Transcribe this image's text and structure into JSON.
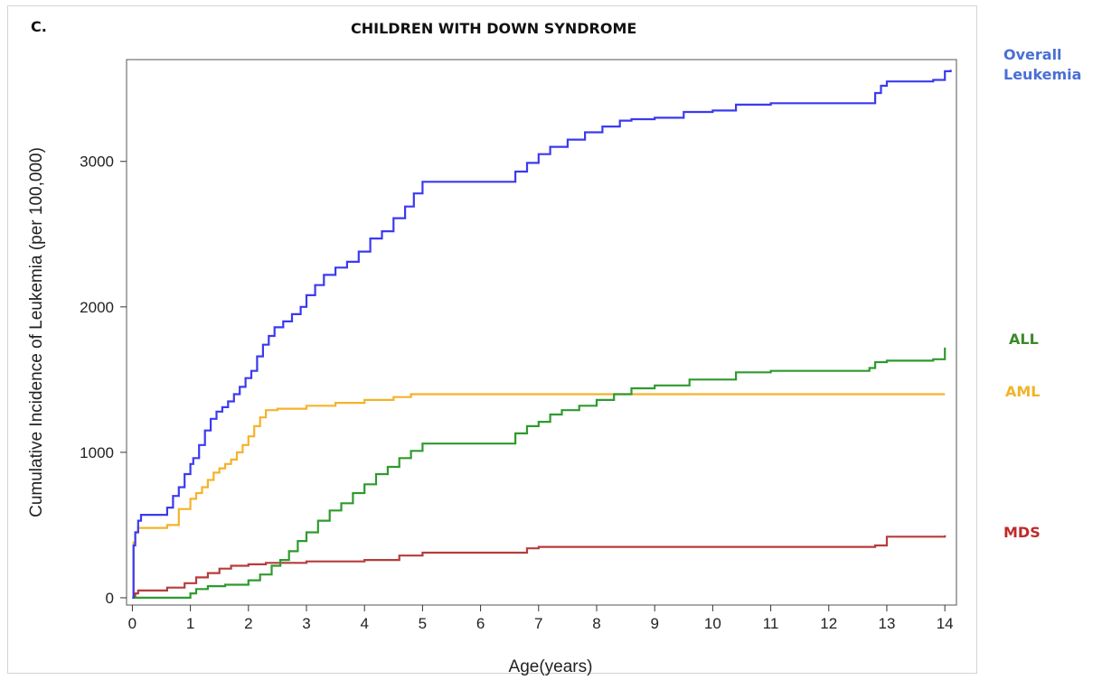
{
  "panel_label": "C.",
  "chart_data": {
    "type": "line",
    "title": "CHILDREN WITH DOWN SYNDROME",
    "xlabel": "Age(years)",
    "ylabel": "Cumulative Incidence of Leukemia (per 100,000)",
    "xlim": [
      -0.1,
      14.2
    ],
    "ylim": [
      -50,
      3700
    ],
    "x_ticks": [
      0,
      1,
      2,
      3,
      4,
      5,
      6,
      7,
      8,
      9,
      10,
      11,
      12,
      13,
      14
    ],
    "y_ticks": [
      0,
      1000,
      2000,
      3000
    ],
    "y_tick_labels": [
      "0",
      "1000",
      "2000",
      "3000"
    ],
    "grid": false,
    "legend": "right, labels next to series",
    "series": [
      {
        "name": "Overall Leukemia",
        "color": "#3a3af0",
        "label_color": "#4a6fd4",
        "step": true,
        "x": [
          0,
          0.02,
          0.05,
          0.1,
          0.15,
          0.6,
          0.7,
          0.8,
          0.9,
          1.0,
          1.05,
          1.15,
          1.25,
          1.35,
          1.45,
          1.55,
          1.65,
          1.75,
          1.85,
          1.95,
          2.05,
          2.15,
          2.25,
          2.35,
          2.45,
          2.6,
          2.75,
          2.9,
          3.0,
          3.15,
          3.3,
          3.5,
          3.7,
          3.9,
          4.1,
          4.3,
          4.5,
          4.7,
          4.85,
          5.0,
          6.6,
          6.8,
          7.0,
          7.2,
          7.5,
          7.8,
          8.1,
          8.4,
          8.6,
          9.0,
          9.5,
          10.0,
          10.4,
          11.0,
          12.8,
          12.9,
          13.0,
          13.8,
          14.0,
          14.1
        ],
        "values": [
          0,
          360,
          450,
          530,
          570,
          620,
          700,
          760,
          850,
          920,
          960,
          1050,
          1150,
          1230,
          1280,
          1310,
          1350,
          1400,
          1450,
          1510,
          1560,
          1660,
          1740,
          1800,
          1860,
          1900,
          1950,
          2000,
          2080,
          2150,
          2220,
          2270,
          2310,
          2380,
          2470,
          2520,
          2610,
          2690,
          2780,
          2860,
          2930,
          2990,
          3050,
          3100,
          3150,
          3200,
          3240,
          3280,
          3290,
          3300,
          3340,
          3350,
          3390,
          3400,
          3470,
          3520,
          3550,
          3560,
          3620,
          3630
        ]
      },
      {
        "name": "ALL",
        "color": "#2e9a2e",
        "label_color": "#3a8a2a",
        "step": true,
        "x": [
          0,
          0.05,
          1.0,
          1.1,
          1.3,
          1.6,
          2.0,
          2.2,
          2.4,
          2.55,
          2.7,
          2.85,
          3.0,
          3.2,
          3.4,
          3.6,
          3.8,
          4.0,
          4.2,
          4.4,
          4.6,
          4.8,
          5.0,
          6.6,
          6.8,
          7.0,
          7.2,
          7.4,
          7.7,
          8.0,
          8.3,
          8.6,
          9.0,
          9.6,
          10.4,
          11.0,
          12.7,
          12.8,
          13.0,
          13.8,
          14.0
        ],
        "values": [
          0,
          0,
          30,
          60,
          80,
          90,
          120,
          160,
          220,
          260,
          320,
          390,
          450,
          530,
          600,
          650,
          720,
          780,
          850,
          900,
          960,
          1010,
          1060,
          1130,
          1180,
          1210,
          1260,
          1290,
          1320,
          1360,
          1400,
          1440,
          1460,
          1500,
          1550,
          1560,
          1580,
          1620,
          1630,
          1640,
          1720
        ]
      },
      {
        "name": "AML",
        "color": "#f5b22a",
        "label_color": "#f0b428",
        "step": true,
        "x": [
          0,
          0.02,
          0.05,
          0.1,
          0.6,
          0.8,
          1.0,
          1.1,
          1.2,
          1.3,
          1.4,
          1.5,
          1.6,
          1.7,
          1.8,
          1.9,
          2.0,
          2.1,
          2.2,
          2.3,
          2.5,
          3.0,
          3.5,
          4.0,
          4.5,
          4.8,
          14.0
        ],
        "values": [
          0,
          380,
          450,
          480,
          500,
          610,
          680,
          720,
          760,
          810,
          860,
          890,
          920,
          950,
          1000,
          1050,
          1110,
          1180,
          1240,
          1290,
          1300,
          1320,
          1340,
          1360,
          1380,
          1400,
          1400
        ]
      },
      {
        "name": "MDS",
        "color": "#b63c3c",
        "label_color": "#c02a2a",
        "step": true,
        "x": [
          0,
          0.05,
          0.1,
          0.6,
          0.9,
          1.1,
          1.3,
          1.5,
          1.7,
          2.0,
          2.3,
          3.0,
          4.0,
          4.6,
          5.0,
          6.8,
          7.0,
          9.0,
          12.8,
          13.0,
          14.0
        ],
        "values": [
          0,
          30,
          50,
          70,
          100,
          140,
          170,
          200,
          220,
          230,
          240,
          250,
          260,
          290,
          310,
          340,
          350,
          350,
          360,
          420,
          430
        ]
      }
    ]
  }
}
